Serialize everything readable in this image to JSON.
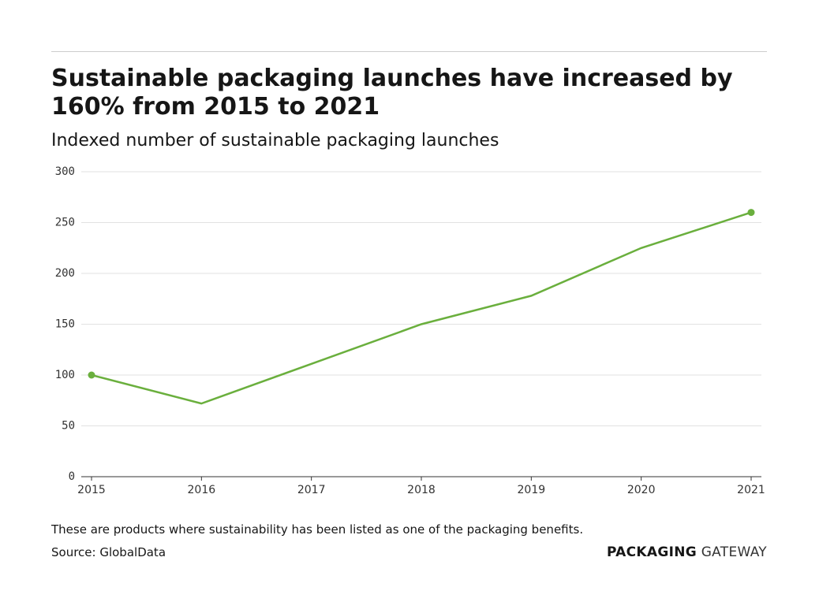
{
  "chart_data": {
    "type": "line",
    "title": "Sustainable packaging launches have increased by 160% from 2015 to 2021",
    "subtitle": "Indexed number of sustainable packaging launches",
    "x": [
      2015,
      2016,
      2017,
      2018,
      2019,
      2020,
      2021
    ],
    "series": [
      {
        "name": "Sustainable packaging launches",
        "color": "#6aaf3d",
        "values": [
          100,
          72,
          111,
          150,
          178,
          225,
          260
        ]
      }
    ],
    "xlim": [
      2015,
      2021
    ],
    "xticks": [
      2015,
      2016,
      2017,
      2018,
      2019,
      2020,
      2021
    ],
    "ylim": [
      0,
      300
    ],
    "yticks": [
      0,
      50,
      100,
      150,
      200,
      250,
      300
    ],
    "grid": true,
    "end_markers": true,
    "note": "These are products where sustainability has been listed as one of the packaging benefits.",
    "source": "Source: GlobalData"
  },
  "logo": {
    "bold": "PACKAGING",
    "light": "GATEWAY"
  }
}
